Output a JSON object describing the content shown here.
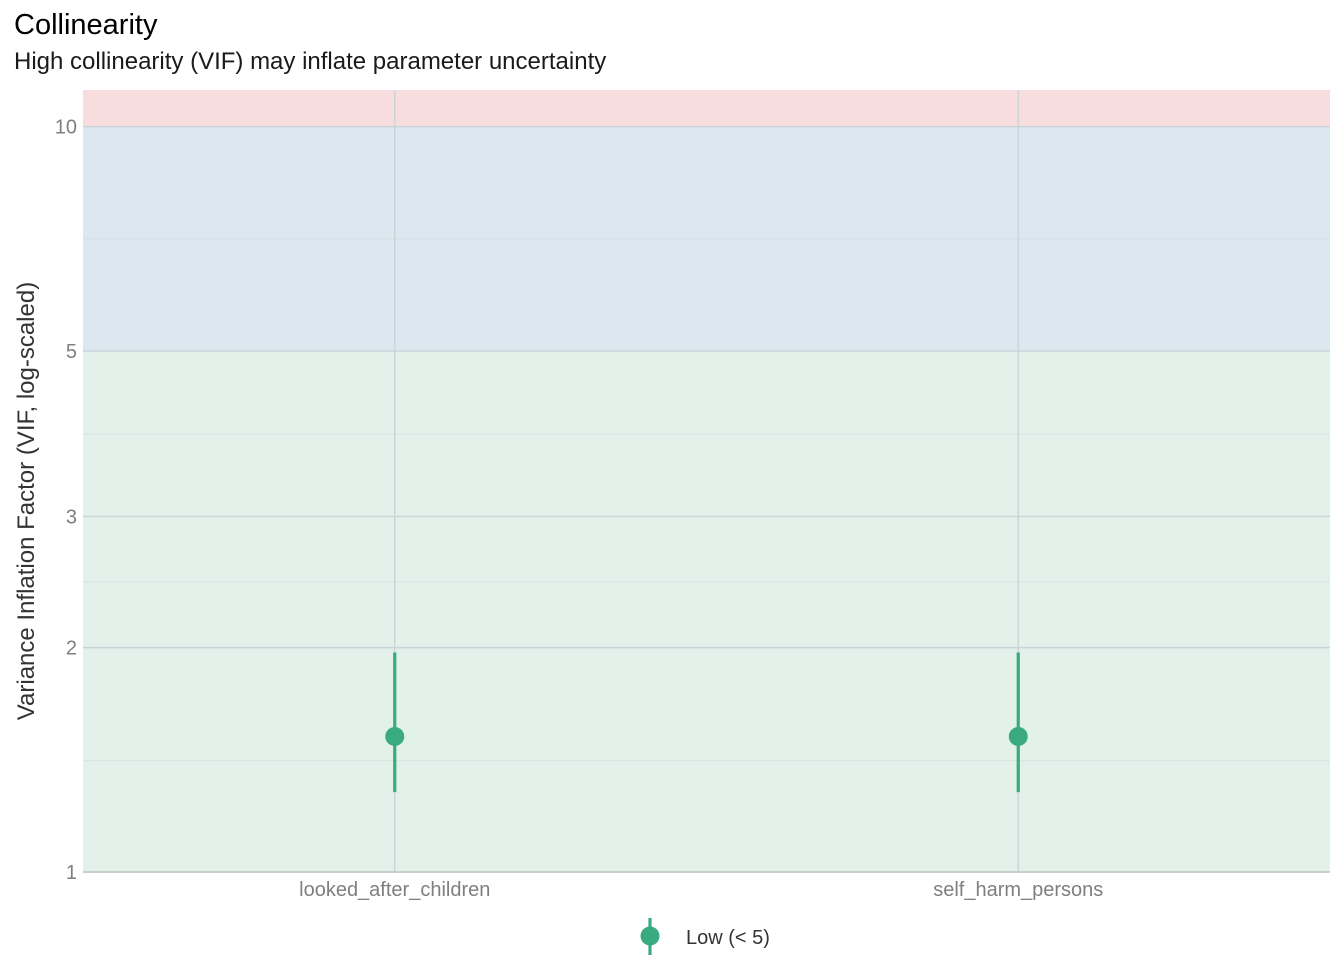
{
  "chart_data": {
    "type": "scatter",
    "title": "Collinearity",
    "subtitle": "High collinearity (VIF) may inflate parameter uncertainty",
    "xlabel": "",
    "ylabel": "Variance Inflation Factor (VIF, log-scaled)",
    "y_scale": "log",
    "ylim": [
      1,
      11.2
    ],
    "y_ticks": [
      1,
      2,
      3,
      5,
      10
    ],
    "y_minor_ticks": [
      1.41,
      2.45,
      3.87,
      7.07
    ],
    "categories": [
      "looked_after_children",
      "self_harm_persons"
    ],
    "series": [
      {
        "name": "Low (< 5)",
        "color": "#3aaa80",
        "values": [
          1.52,
          1.52
        ],
        "lower": [
          1.28,
          1.28
        ],
        "upper": [
          1.97,
          1.97
        ]
      }
    ],
    "bands": [
      {
        "from": 1,
        "to": 5,
        "color": "#e2f1ea"
      },
      {
        "from": 5,
        "to": 10,
        "color": "#dce8f0"
      },
      {
        "from": 10,
        "to": 11.2,
        "color": "#f8dddf"
      }
    ],
    "grid": true,
    "legend_position": "bottom"
  }
}
